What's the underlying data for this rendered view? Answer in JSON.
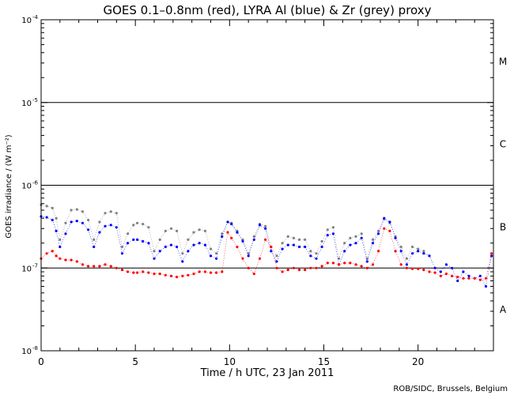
{
  "chart_data": {
    "type": "scatter",
    "title": "GOES 0.1–0.8nm (red), LYRA Al (blue) & Zr (grey) proxy",
    "xlabel": "Time / h UTC, 23 Jan 2011",
    "ylabel": "GOES irradiance / (W m⁻²)",
    "credit": "ROB/SIDC, Brussels, Belgium",
    "xlim": [
      0,
      24
    ],
    "ylim": [
      1e-08,
      0.0001
    ],
    "yscale": "log",
    "x_ticks": [
      0,
      5,
      10,
      15,
      20
    ],
    "y_ticks": [
      {
        "value": 1e-08,
        "mantissa": "10",
        "exp": "-8"
      },
      {
        "value": 1e-07,
        "mantissa": "10",
        "exp": "-7"
      },
      {
        "value": 1e-06,
        "mantissa": "10",
        "exp": "-6"
      },
      {
        "value": 1e-05,
        "mantissa": "10",
        "exp": "-5"
      },
      {
        "value": 0.0001,
        "mantissa": "10",
        "exp": "-4"
      }
    ],
    "flare_class_lines": [
      1e-07,
      1e-06,
      1e-05
    ],
    "flare_classes": [
      {
        "label": "A",
        "value": 3.2e-08
      },
      {
        "label": "B",
        "value": 3.2e-07
      },
      {
        "label": "C",
        "value": 3.2e-06
      },
      {
        "label": "M",
        "value": 3.2e-05
      }
    ],
    "colors": {
      "goes": "#ff0000",
      "al": "#0000ff",
      "zr": "#808080",
      "axis": "#000000"
    },
    "series": [
      {
        "color": "#808080",
        "x": [
          0.0,
          0.3,
          0.6,
          0.8,
          1.0,
          1.3,
          1.6,
          1.9,
          2.2,
          2.5,
          2.8,
          3.1,
          3.4,
          3.7,
          4.0,
          4.3,
          4.6,
          4.9,
          5.1,
          5.4,
          5.7,
          6.0,
          6.3,
          6.6,
          6.9,
          7.2,
          7.5,
          7.8,
          8.1,
          8.4,
          8.7,
          9.0,
          9.3,
          9.6,
          9.9,
          10.1,
          10.4,
          10.7,
          11.0,
          11.3,
          11.6,
          11.9,
          12.2,
          12.5,
          12.8,
          13.1,
          13.4,
          13.7,
          14.0,
          14.3,
          14.6,
          14.9,
          15.2,
          15.5,
          15.8,
          16.1,
          16.4,
          16.7,
          17.0,
          17.3,
          17.6,
          17.9,
          18.2,
          18.5,
          18.8,
          19.1,
          19.4,
          19.7,
          20.0,
          20.3,
          20.6
        ],
        "y": [
          5.8e-07,
          5.6e-07,
          5.3e-07,
          4e-07,
          2.2e-07,
          3.5e-07,
          5e-07,
          5.1e-07,
          4.8e-07,
          3.8e-07,
          2.2e-07,
          3.6e-07,
          4.6e-07,
          4.8e-07,
          4.6e-07,
          1.8e-07,
          2.6e-07,
          3.3e-07,
          3.5e-07,
          3.4e-07,
          3.1e-07,
          1.6e-07,
          2.2e-07,
          2.8e-07,
          3e-07,
          2.8e-07,
          1.5e-07,
          2.2e-07,
          2.7e-07,
          2.9e-07,
          2.8e-07,
          1.7e-07,
          1.5e-07,
          2.6e-07,
          3.6e-07,
          3.5e-07,
          2.8e-07,
          2.2e-07,
          1.5e-07,
          2.4e-07,
          3.4e-07,
          3.2e-07,
          1.8e-07,
          1.4e-07,
          2e-07,
          2.4e-07,
          2.3e-07,
          2.2e-07,
          2.2e-07,
          1.6e-07,
          1.5e-07,
          2.1e-07,
          2.9e-07,
          3.1e-07,
          1.3e-07,
          2e-07,
          2.3e-07,
          2.4e-07,
          2.6e-07,
          1.3e-07,
          2.2e-07,
          2.8e-07,
          3.9e-07,
          3.5e-07,
          2.4e-07,
          1.8e-07,
          1.3e-07,
          1.8e-07,
          1.7e-07,
          1.6e-07,
          1.4e-07
        ]
      },
      {
        "color": "#0000ff",
        "x": [
          0.0,
          0.3,
          0.6,
          0.8,
          1.0,
          1.3,
          1.6,
          1.9,
          2.2,
          2.5,
          2.8,
          3.1,
          3.4,
          3.7,
          4.0,
          4.3,
          4.6,
          4.9,
          5.1,
          5.4,
          5.7,
          6.0,
          6.3,
          6.6,
          6.9,
          7.2,
          7.5,
          7.8,
          8.1,
          8.4,
          8.7,
          9.0,
          9.3,
          9.6,
          9.9,
          10.1,
          10.4,
          10.7,
          11.0,
          11.3,
          11.6,
          11.9,
          12.2,
          12.5,
          12.8,
          13.1,
          13.4,
          13.7,
          14.0,
          14.3,
          14.6,
          14.9,
          15.2,
          15.5,
          15.8,
          16.1,
          16.4,
          16.7,
          17.0,
          17.3,
          17.6,
          17.9,
          18.2,
          18.5,
          18.8,
          19.1,
          19.4,
          19.7,
          20.0,
          20.3,
          20.6,
          20.9,
          21.2,
          21.5,
          21.8,
          22.1,
          22.4,
          22.7,
          23.0,
          23.3,
          23.6,
          23.9
        ],
        "y": [
          4.2e-07,
          4.1e-07,
          3.8e-07,
          2.8e-07,
          1.8e-07,
          2.6e-07,
          3.6e-07,
          3.7e-07,
          3.5e-07,
          2.9e-07,
          1.8e-07,
          2.7e-07,
          3.2e-07,
          3.3e-07,
          3.1e-07,
          1.5e-07,
          2e-07,
          2.2e-07,
          2.2e-07,
          2.1e-07,
          2e-07,
          1.3e-07,
          1.6e-07,
          1.8e-07,
          1.9e-07,
          1.8e-07,
          1.2e-07,
          1.6e-07,
          1.9e-07,
          2e-07,
          1.9e-07,
          1.4e-07,
          1.3e-07,
          2.4e-07,
          3.6e-07,
          3.4e-07,
          2.7e-07,
          2.1e-07,
          1.4e-07,
          2.2e-07,
          3.3e-07,
          3e-07,
          1.6e-07,
          1.2e-07,
          1.7e-07,
          1.9e-07,
          1.9e-07,
          1.8e-07,
          1.8e-07,
          1.4e-07,
          1.3e-07,
          1.8e-07,
          2.5e-07,
          2.6e-07,
          1.1e-07,
          1.6e-07,
          1.9e-07,
          2e-07,
          2.3e-07,
          1.2e-07,
          2e-07,
          2.6e-07,
          4e-07,
          3.6e-07,
          2.3e-07,
          1.6e-07,
          1.1e-07,
          1.5e-07,
          1.6e-07,
          1.5e-07,
          1.4e-07,
          1e-07,
          9e-08,
          1.1e-07,
          1e-07,
          7e-08,
          9e-08,
          8e-08,
          7.5e-08,
          8e-08,
          6e-08,
          1.4e-07
        ]
      },
      {
        "color": "#ff0000",
        "x": [
          0.0,
          0.3,
          0.6,
          0.8,
          1.0,
          1.3,
          1.6,
          1.9,
          2.2,
          2.5,
          2.8,
          3.1,
          3.4,
          3.7,
          4.0,
          4.3,
          4.6,
          4.9,
          5.1,
          5.4,
          5.7,
          6.0,
          6.3,
          6.6,
          6.9,
          7.2,
          7.5,
          7.8,
          8.1,
          8.4,
          8.7,
          9.0,
          9.3,
          9.6,
          9.9,
          10.1,
          10.4,
          10.7,
          11.0,
          11.3,
          11.6,
          11.9,
          12.2,
          12.5,
          12.8,
          13.1,
          13.4,
          13.7,
          14.0,
          14.3,
          14.6,
          14.9,
          15.2,
          15.5,
          15.8,
          16.1,
          16.4,
          16.7,
          17.0,
          17.3,
          17.6,
          17.9,
          18.2,
          18.5,
          18.8,
          19.1,
          19.4,
          19.7,
          20.0,
          20.3,
          20.6,
          20.9,
          21.2,
          21.5,
          21.8,
          22.1,
          22.4,
          22.7,
          23.0,
          23.3,
          23.6,
          23.9
        ],
        "y": [
          1.3e-07,
          1.5e-07,
          1.6e-07,
          1.4e-07,
          1.3e-07,
          1.25e-07,
          1.25e-07,
          1.2e-07,
          1.1e-07,
          1.05e-07,
          1.05e-07,
          1.05e-07,
          1.1e-07,
          1.05e-07,
          1e-07,
          9.5e-08,
          9e-08,
          8.8e-08,
          8.8e-08,
          9e-08,
          8.8e-08,
          8.5e-08,
          8.5e-08,
          8.2e-08,
          8e-08,
          7.8e-08,
          8e-08,
          8.2e-08,
          8.5e-08,
          9e-08,
          9e-08,
          8.8e-08,
          8.8e-08,
          9e-08,
          2.7e-07,
          2.3e-07,
          1.8e-07,
          1.3e-07,
          1e-07,
          8.5e-08,
          1.3e-07,
          2.2e-07,
          1.8e-07,
          1e-07,
          9e-08,
          9.5e-08,
          1e-07,
          9.5e-08,
          9.5e-08,
          1e-07,
          1e-07,
          1.05e-07,
          1.15e-07,
          1.15e-07,
          1.1e-07,
          1.15e-07,
          1.15e-07,
          1.1e-07,
          1.05e-07,
          1e-07,
          1.1e-07,
          1.6e-07,
          3e-07,
          2.8e-07,
          1.6e-07,
          1.1e-07,
          1e-07,
          9.8e-08,
          9.8e-08,
          9.5e-08,
          9e-08,
          8.8e-08,
          8e-08,
          8.5e-08,
          8e-08,
          7.8e-08,
          7.5e-08,
          7.5e-08,
          7.5e-08,
          7.2e-08,
          7.5e-08,
          1.5e-07
        ]
      }
    ]
  }
}
